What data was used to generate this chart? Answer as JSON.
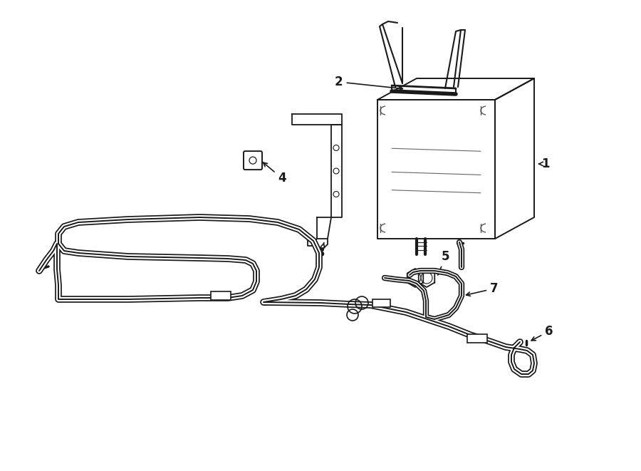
{
  "background_color": "#ffffff",
  "line_color": "#1a1a1a",
  "lw": 1.4,
  "label_fontsize": 12,
  "figsize": [
    9.0,
    6.61
  ],
  "dpi": 100
}
